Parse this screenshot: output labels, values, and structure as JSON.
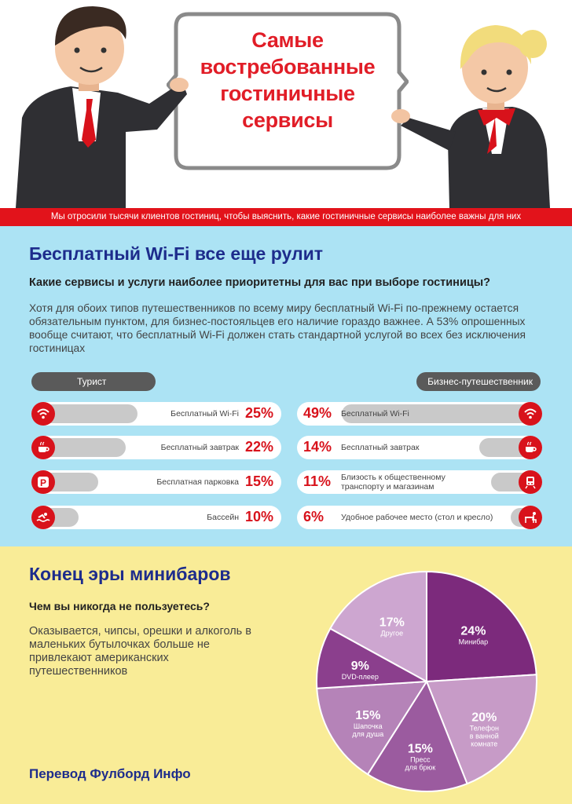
{
  "header": {
    "title_lines": [
      "Самые",
      "востребованные",
      "гостиничные",
      "сервисы"
    ],
    "banner": "Мы отросили тысячи клиентов гостиниц, чтобы выяснить, какие гостиничные сервисы наиболее важны для них"
  },
  "wifi": {
    "heading": "Бесплатный Wi-Fi все еще рулит",
    "question": "Какие сервисы и услуги наиболее приоритетны для вас при выборе гостиницы?",
    "text": "Хотя для обоих типов путешественников по всему миру бесплатный Wi-Fi по-прежнему остается обязательным пунктом, для бизнес-постояльцев его наличие гораздо важнее. А 53% опрошенных вообще считают, что бесплатный Wi-Fi должен стать стандартной услугой во всех без исключения гостиницах",
    "tourist_header": "Турист",
    "business_header": "Бизнес-путешественник",
    "tourist": [
      {
        "label": "Бесплатный Wi-Fi",
        "pct": "25%",
        "value": 25,
        "icon": "wifi-icon"
      },
      {
        "label": "Бесплатный завтрак",
        "pct": "22%",
        "value": 22,
        "icon": "coffee-icon"
      },
      {
        "label": "Бесплатная парковка",
        "pct": "15%",
        "value": 15,
        "icon": "parking-icon"
      },
      {
        "label": "Бассейн",
        "pct": "10%",
        "value": 10,
        "icon": "swimming-icon"
      }
    ],
    "business": [
      {
        "label": "Бесплатный Wi-Fi",
        "pct": "49%",
        "value": 49,
        "icon": "wifi-icon"
      },
      {
        "label": "Бесплатный завтрак",
        "pct": "14%",
        "value": 14,
        "icon": "coffee-icon"
      },
      {
        "label": "Близость к общественному транспорту и магазинам",
        "pct": "11%",
        "value": 11,
        "icon": "train-icon"
      },
      {
        "label": "Удобное рабочее место (стол и кресло)",
        "pct": "6%",
        "value": 6,
        "icon": "desk-icon"
      }
    ]
  },
  "minibar": {
    "heading": "Конец эры минибаров",
    "question": "Чем вы никогда не пользуетесь?",
    "text": "Оказывается, чипсы, орешки и алкоголь в маленьких бутылочках больше не привлекают американских путешественников",
    "credit": "Перевод Фулборд Инфо"
  },
  "chart_data": {
    "type": "pie",
    "slices": [
      {
        "name": "Минибар",
        "pct": "24%",
        "value": 24,
        "color": "#7c2a7c",
        "icon": "cocktail-icon"
      },
      {
        "name": "Телефон в ванной комнате",
        "pct": "20%",
        "value": 20,
        "color": "#c79bc7",
        "icon": "phone-icon"
      },
      {
        "name": "Пресс для брюк",
        "pct": "15%",
        "value": 15,
        "color": "#9b5b9f",
        "icon": "hanger-icon"
      },
      {
        "name": "Шапочка для душа",
        "pct": "15%",
        "value": 15,
        "color": "#b583b8",
        "icon": "shower-icon"
      },
      {
        "name": "DVD-плеер",
        "pct": "9%",
        "value": 9,
        "color": "#8b3f8d",
        "icon": "dvd-icon"
      },
      {
        "name": "Другое",
        "pct": "17%",
        "value": 17,
        "color": "#cda6d0",
        "icon": ""
      }
    ]
  }
}
